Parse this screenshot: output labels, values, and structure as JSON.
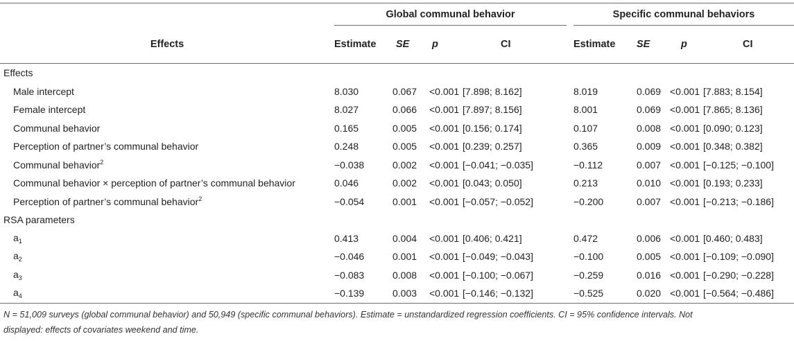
{
  "header": {
    "group_global": "Global communal behavior",
    "group_specific": "Specific communal behaviors",
    "effects_col": "Effects",
    "col_estimate": "Estimate",
    "col_se": "SE",
    "col_p": "p",
    "col_ci": "CI"
  },
  "sections": {
    "effects": "Effects",
    "rsa": "RSA parameters"
  },
  "rows": {
    "male_intercept": {
      "label": "Male intercept",
      "g": [
        "8.030",
        "0.067",
        "<0.001",
        "[7.898; 8.162]"
      ],
      "s": [
        "8.019",
        "0.069",
        "<0.001",
        "[7.883; 8.154]"
      ]
    },
    "female_intercept": {
      "label": "Female intercept",
      "g": [
        "8.027",
        "0.066",
        "<0.001",
        "[7.897; 8.156]"
      ],
      "s": [
        "8.001",
        "0.069",
        "<0.001",
        "[7.865; 8.136]"
      ]
    },
    "communal": {
      "label": "Communal behavior",
      "g": [
        "0.165",
        "0.005",
        "<0.001",
        "[0.156; 0.174]"
      ],
      "s": [
        "0.107",
        "0.008",
        "<0.001",
        "[0.090; 0.123]"
      ]
    },
    "perception": {
      "label": "Perception of partner’s communal behavior",
      "g": [
        "0.248",
        "0.005",
        "<0.001",
        "[0.239; 0.257]"
      ],
      "s": [
        "0.365",
        "0.009",
        "<0.001",
        "[0.348; 0.382]"
      ]
    },
    "communal_sq": {
      "label": "Communal behavior",
      "sup": "2",
      "g": [
        "−0.038",
        "0.002",
        "<0.001",
        "[−0.041; −0.035]"
      ],
      "s": [
        "−0.112",
        "0.007",
        "<0.001",
        "[−0.125; −0.100]"
      ]
    },
    "interaction": {
      "label": "Communal behavior × perception of partner’s communal behavior",
      "g": [
        "0.046",
        "0.002",
        "<0.001",
        "[0.043; 0.050]"
      ],
      "s": [
        "0.213",
        "0.010",
        "<0.001",
        "[0.193; 0.233]"
      ]
    },
    "perception_sq": {
      "label": "Perception of partner’s communal behavior",
      "sup": "2",
      "g": [
        "−0.054",
        "0.001",
        "<0.001",
        "[−0.057; −0.052]"
      ],
      "s": [
        "−0.200",
        "0.007",
        "<0.001",
        "[−0.213; −0.186]"
      ]
    },
    "a1": {
      "label": "a",
      "sub": "1",
      "g": [
        "0.413",
        "0.004",
        "<0.001",
        "[0.406; 0.421]"
      ],
      "s": [
        "0.472",
        "0.006",
        "<0.001",
        "[0.460; 0.483]"
      ]
    },
    "a2": {
      "label": "a",
      "sub": "2",
      "g": [
        "−0.046",
        "0.001",
        "<0.001",
        "[−0.049; −0.043]"
      ],
      "s": [
        "−0.100",
        "0.005",
        "<0.001",
        "[−0.109; −0.090]"
      ]
    },
    "a3": {
      "label": "a",
      "sub": "3",
      "g": [
        "−0.083",
        "0.008",
        "<0.001",
        "[−0.100; −0.067]"
      ],
      "s": [
        "−0.259",
        "0.016",
        "<0.001",
        "[−0.290; −0.228]"
      ]
    },
    "a4": {
      "label": "a",
      "sub": "4",
      "g": [
        "−0.139",
        "0.003",
        "<0.001",
        "[−0.146; −0.132]"
      ],
      "s": [
        "−0.525",
        "0.020",
        "<0.001",
        "[−0.564; −0.486]"
      ]
    }
  },
  "note": {
    "line1": "N = 51,009 surveys (global communal behavior) and 50,949 (specific communal behaviors). Estimate = unstandardized regression coefficients. CI = 95% confidence intervals. Not",
    "line2": "displayed: effects of covariates weekend and time."
  }
}
